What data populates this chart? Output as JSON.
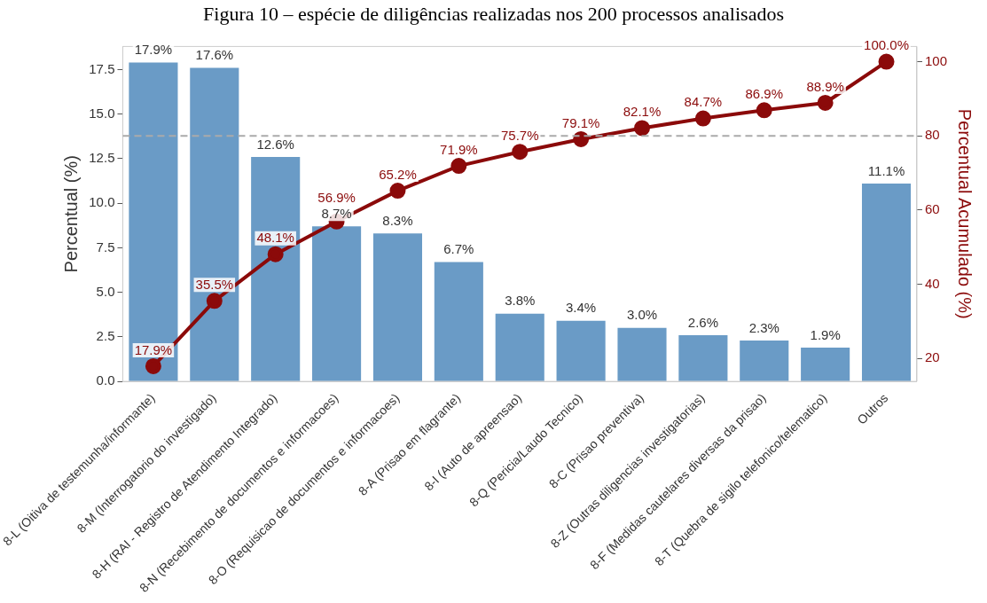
{
  "chart_data": {
    "type": "bar",
    "title": "Figura 10 – espécie de diligências realizadas nos 200 processos analisados",
    "ylabel": "Percentual (%)",
    "y2label": "Percentual Acumulado (%)",
    "categories": [
      "8-L (Oitiva de testemunha/informante)",
      "8-M (Interrogatorio do investigado)",
      "8-H (RAI - Registro de Atendimento Integrado)",
      "8-N (Recebimento de documentos e informacoes)",
      "8-O (Requisicao de documentos e informacoes)",
      "8-A (Prisao em flagrante)",
      "8-I (Auto de apreensao)",
      "8-Q (Pericia/Laudo Tecnico)",
      "8-C (Prisao preventiva)",
      "8-Z (Outras diligencias investigatorias)",
      "8-F (Medidas cautelares diversas da prisao)",
      "8-T (Quebra de sigilo telefonico/telematico)",
      "Outros"
    ],
    "series": [
      {
        "color": "#6a9bc6",
        "values": [
          17.9,
          17.6,
          12.6,
          8.7,
          8.3,
          6.7,
          3.8,
          3.4,
          3.0,
          2.6,
          2.3,
          1.9,
          11.1
        ],
        "value_labels": [
          "17.9%",
          "17.6%",
          "12.6%",
          "8.7%",
          "8.3%",
          "6.7%",
          "3.8%",
          "3.4%",
          "3.0%",
          "2.6%",
          "2.3%",
          "1.9%",
          "11.1%"
        ]
      },
      {
        "type": "line",
        "axis": "y2",
        "color": "#8b0a0a",
        "marker": "circle",
        "values": [
          17.9,
          35.5,
          48.1,
          56.9,
          65.2,
          71.9,
          75.7,
          79.1,
          82.1,
          84.7,
          86.9,
          88.9,
          100.0
        ],
        "value_labels": [
          "17.9%",
          "35.5%",
          "48.1%",
          "56.9%",
          "65.2%",
          "71.9%",
          "75.7%",
          "79.1%",
          "82.1%",
          "84.7%",
          "86.9%",
          "88.9%",
          "100.0%"
        ]
      }
    ],
    "ylim": [
      0,
      18.795
    ],
    "yticks": [
      {
        "value": 0,
        "label": "0.0"
      },
      {
        "value": 2.5,
        "label": "2.5"
      },
      {
        "value": 5,
        "label": "5.0"
      },
      {
        "value": 7.5,
        "label": "7.5"
      },
      {
        "value": 10,
        "label": "10.0"
      },
      {
        "value": 12.5,
        "label": "12.5"
      },
      {
        "value": 15,
        "label": "15.0"
      },
      {
        "value": 17.5,
        "label": "17.5"
      }
    ],
    "y2lim": [
      13.8,
      104.1
    ],
    "y2ticks": [
      20,
      40,
      60,
      80,
      100
    ],
    "ref_lines": [
      {
        "axis": "y2",
        "value": 80,
        "color": "#aaaaaa",
        "line_style": "dashed"
      }
    ],
    "grid": false,
    "legend": false
  }
}
